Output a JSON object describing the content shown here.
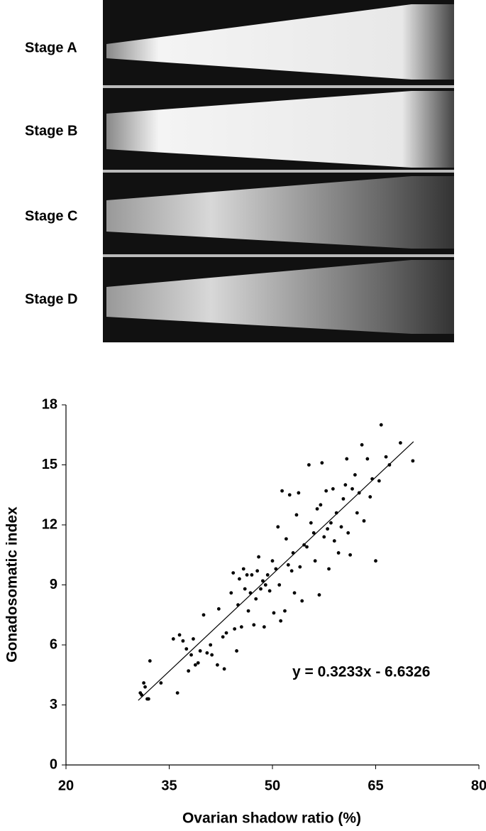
{
  "panels": {
    "labels": [
      "Stage A",
      "Stage B",
      "Stage C",
      "Stage D"
    ]
  },
  "chart_data": {
    "type": "scatter",
    "x_label": "Ovarian shadow ratio (%)",
    "y_label": "Gonadosomatic index",
    "annotation": "y = 0.3233x - 6.6326",
    "xlim": [
      20,
      80
    ],
    "xticks": [
      20,
      35,
      50,
      65,
      80
    ],
    "ylim": [
      0,
      18
    ],
    "yticks": [
      0,
      3,
      6,
      9,
      12,
      15,
      18
    ],
    "color": "#000000",
    "x": [
      30.8,
      31,
      31.3,
      31.5,
      31.8,
      32,
      32.2,
      33.8,
      35.6,
      36.2,
      36.5,
      37,
      37.5,
      37.8,
      38.2,
      38.5,
      38.8,
      39.2,
      39.5,
      40,
      40.5,
      41,
      41.2,
      42,
      42.2,
      42.8,
      43,
      43.3,
      44,
      44.3,
      44.5,
      44.8,
      45,
      45.2,
      45.5,
      45.8,
      46,
      46.3,
      46.5,
      46.8,
      47,
      47.3,
      47.6,
      47.8,
      48,
      48.3,
      48.6,
      48.8,
      49,
      49.3,
      49.6,
      50,
      50.2,
      50.5,
      50.8,
      51,
      51.2,
      51.4,
      51.8,
      52,
      52.3,
      52.5,
      52.8,
      53,
      53.2,
      53.5,
      53.8,
      54,
      54.3,
      54.6,
      55,
      55.3,
      55.6,
      56,
      56.2,
      56.5,
      56.8,
      57,
      57.2,
      57.5,
      57.8,
      58,
      58.2,
      58.5,
      58.8,
      59,
      59.3,
      59.6,
      60,
      60.3,
      60.6,
      60.8,
      61,
      61.3,
      61.6,
      62,
      62.3,
      62.6,
      63,
      63.3,
      63.8,
      64.2,
      64.5,
      65,
      65.5,
      65.8,
      66.5,
      67,
      68.6,
      70.4
    ],
    "values": [
      3.6,
      3.5,
      4.1,
      3.9,
      3.3,
      3.3,
      5.2,
      4.1,
      6.3,
      3.6,
      6.5,
      6.2,
      5.8,
      4.7,
      5.5,
      6.3,
      5.0,
      5.1,
      5.7,
      7.5,
      5.6,
      6.0,
      5.5,
      5.0,
      7.8,
      6.4,
      4.8,
      6.6,
      8.6,
      9.6,
      6.8,
      5.7,
      8.0,
      9.3,
      6.9,
      9.8,
      8.8,
      9.5,
      7.7,
      8.6,
      9.5,
      7.0,
      8.3,
      9.7,
      10.4,
      8.8,
      9.2,
      6.9,
      9.0,
      9.5,
      8.7,
      10.2,
      7.6,
      9.8,
      11.9,
      9.0,
      7.2,
      13.7,
      7.7,
      11.3,
      10.0,
      13.5,
      9.7,
      10.6,
      8.6,
      12.5,
      13.6,
      9.9,
      8.2,
      11.0,
      10.9,
      15.0,
      12.1,
      11.6,
      10.2,
      12.8,
      8.5,
      13.0,
      15.1,
      11.4,
      13.7,
      11.8,
      9.8,
      12.1,
      13.8,
      11.2,
      12.6,
      10.6,
      11.9,
      13.3,
      14.0,
      15.3,
      11.6,
      10.5,
      13.8,
      14.5,
      12.6,
      13.6,
      16.0,
      12.2,
      15.3,
      13.4,
      14.3,
      10.2,
      14.2,
      17.0,
      15.4,
      15.0,
      16.1,
      15.2
    ],
    "trendline": {
      "x": [
        30.5,
        70.5
      ],
      "values": [
        3.23,
        16.16
      ],
      "color": "#000000"
    }
  }
}
